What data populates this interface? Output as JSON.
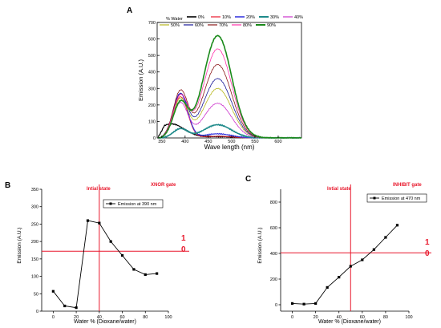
{
  "chart_data": [
    {
      "type": "line",
      "panel": "A",
      "xlabel": "Wave length (nm)",
      "ylabel": "Emission (A.U.)",
      "xlim": [
        340,
        650
      ],
      "ylim": [
        0,
        700
      ],
      "xticks": [
        350,
        400,
        450,
        500,
        550,
        600
      ],
      "xtick_labels": [
        "350",
        "400",
        "450",
        "500",
        "550",
        "600"
      ],
      "yticks": [
        0,
        100,
        200,
        300,
        400,
        500,
        600,
        700
      ],
      "legend_title": "% Water",
      "legend_position": "top",
      "series": [
        {
          "name": "0%",
          "color": "#000000",
          "width": 1.2,
          "peak1": 85,
          "peak2": 0
        },
        {
          "name": "10%",
          "color": "#e8172b",
          "width": 0.8,
          "peak1": 250,
          "peak2": 10
        },
        {
          "name": "20%",
          "color": "#3a3ae0",
          "width": 1.2,
          "peak1": 270,
          "peak2": 25
        },
        {
          "name": "30%",
          "color": "#1e8a8a",
          "width": 1.6,
          "peak1": 55,
          "peak2": 80
        },
        {
          "name": "40%",
          "color": "#cc33cc",
          "width": 0.8,
          "peak1": 210,
          "peak2": 210
        },
        {
          "name": "50%",
          "color": "#b8b820",
          "width": 0.8,
          "peak1": 235,
          "peak2": 300
        },
        {
          "name": "60%",
          "color": "#1a1a99",
          "width": 0.8,
          "peak1": 260,
          "peak2": 360
        },
        {
          "name": "70%",
          "color": "#8b1a1a",
          "width": 0.8,
          "peak1": 280,
          "peak2": 445
        },
        {
          "name": "80%",
          "color": "#ff33aa",
          "width": 0.8,
          "peak1": 250,
          "peak2": 540
        },
        {
          "name": "90%",
          "color": "#1a8a1a",
          "width": 1.6,
          "peak1": 210,
          "peak2": 620
        }
      ]
    },
    {
      "type": "line",
      "panel": "B",
      "gate_label": "XNOR gate",
      "state_label": "Intial state",
      "xlabel": "Water %  (Dioxane/water)",
      "ylabel": "Emission (A.U.)",
      "xlim": [
        -10,
        100
      ],
      "ylim": [
        0,
        350
      ],
      "xticks": [
        0,
        20,
        40,
        60,
        80,
        100
      ],
      "yticks": [
        0,
        50,
        100,
        150,
        200,
        250,
        300,
        350
      ],
      "series": [
        {
          "name": "Emission at 390 nm",
          "x": [
            0,
            10,
            20,
            30,
            40,
            50,
            60,
            70,
            80,
            90
          ],
          "y": [
            57,
            15,
            10,
            260,
            253,
            200,
            160,
            120,
            105,
            108
          ]
        }
      ],
      "threshold": 172,
      "vline": 40,
      "threshold_labels": [
        "1",
        "0"
      ]
    },
    {
      "type": "line",
      "panel": "C",
      "gate_label": "INHIBIT gate",
      "state_label": "Intial state",
      "xlabel": "Water %  (Dioxane/water)",
      "ylabel": "Emission (A.U.)",
      "xlim": [
        -10,
        100
      ],
      "ylim": [
        -50,
        900
      ],
      "xticks": [
        0,
        20,
        40,
        60,
        80,
        100
      ],
      "yticks": [
        0,
        200,
        400,
        600,
        800
      ],
      "series": [
        {
          "name": "Emission at 470 nm",
          "x": [
            0,
            10,
            20,
            30,
            40,
            50,
            60,
            70,
            80,
            90
          ],
          "y": [
            10,
            5,
            10,
            135,
            215,
            300,
            350,
            430,
            525,
            620
          ]
        }
      ],
      "threshold": 405,
      "vline": 50,
      "threshold_labels": [
        "1",
        "0"
      ]
    }
  ]
}
